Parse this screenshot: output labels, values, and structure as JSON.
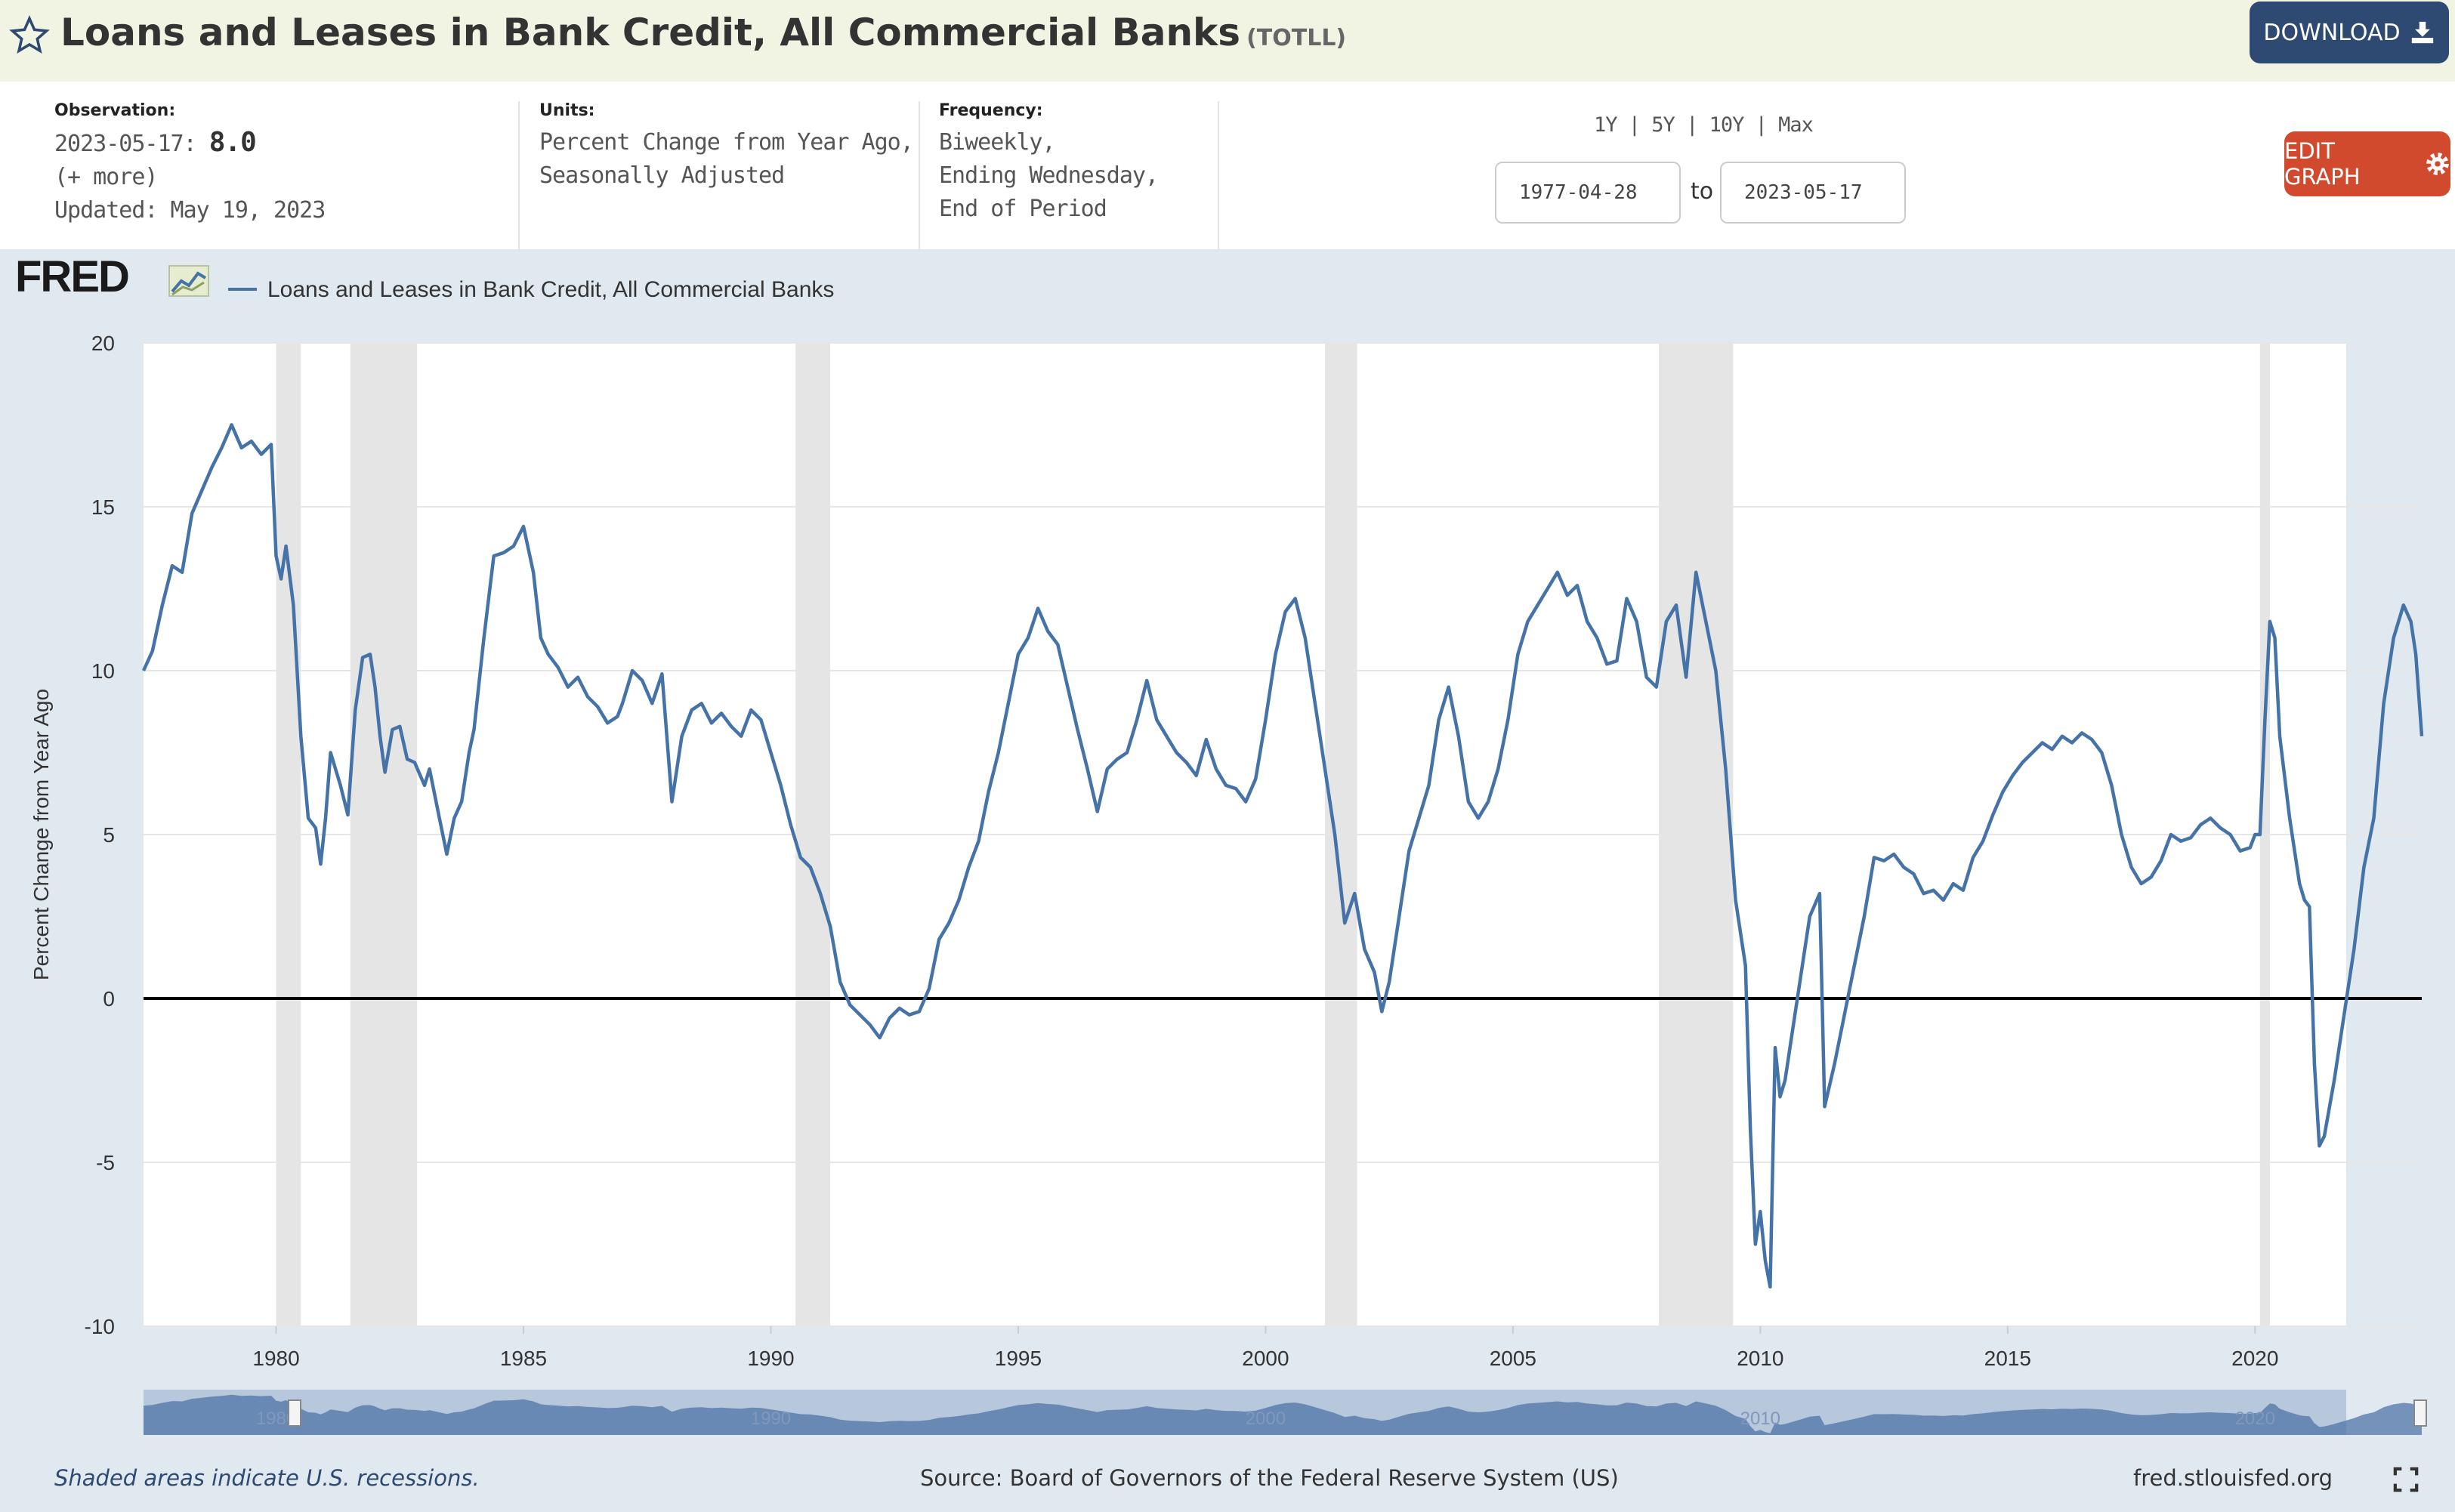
{
  "header": {
    "title": "Loans and Leases in Bank Credit, All Commercial Banks",
    "series_code": "(TOTLL)",
    "download_label": "DOWNLOAD"
  },
  "meta": {
    "observation_label": "Observation:",
    "observation_date": "2023-05-17:",
    "observation_value": "8.0",
    "more_link": "(+ more)",
    "updated": "Updated: May 19, 2023",
    "units_label": "Units:",
    "units_line1": "Percent Change from Year Ago,",
    "units_line2": "Seasonally Adjusted",
    "frequency_label": "Frequency:",
    "frequency_line1": "Biweekly,",
    "frequency_line2": "Ending Wednesday,",
    "frequency_line3": "End of Period"
  },
  "range": {
    "options": [
      "1Y",
      "5Y",
      "10Y",
      "Max"
    ],
    "start": "1977-04-28",
    "to_label": "to",
    "end": "2023-05-17"
  },
  "edit_label": "EDIT GRAPH",
  "chart_data": {
    "type": "line",
    "logo": "FRED",
    "legend": "Loans and Leases in Bank Credit, All Commercial Banks",
    "ylabel": "Percent Change from Year Ago",
    "xlim": [
      1977.32,
      2023.37
    ],
    "ylim": [
      -10,
      20
    ],
    "yticks": [
      20,
      15,
      10,
      5,
      0,
      -5,
      -10
    ],
    "xticks": [
      1980,
      1985,
      1990,
      1995,
      2000,
      2005,
      2010,
      2015,
      2020
    ],
    "nav_labels": [
      "1980",
      "1990",
      "2000",
      "2010",
      "2020"
    ],
    "line_color": "#4572a7",
    "zero_line": true,
    "grid": "horizontal",
    "recessions": [
      [
        1980.0,
        1980.5
      ],
      [
        1981.5,
        1982.85
      ],
      [
        1990.5,
        1991.2
      ],
      [
        2001.2,
        2001.85
      ],
      [
        2007.95,
        2009.45
      ],
      [
        2020.1,
        2020.3
      ]
    ],
    "series": [
      {
        "name": "Loans and Leases in Bank Credit, All Commercial Banks",
        "points": [
          [
            1977.32,
            10.0
          ],
          [
            1977.5,
            10.6
          ],
          [
            1977.7,
            12.0
          ],
          [
            1977.9,
            13.2
          ],
          [
            1978.1,
            13.0
          ],
          [
            1978.3,
            14.8
          ],
          [
            1978.5,
            15.5
          ],
          [
            1978.7,
            16.2
          ],
          [
            1978.9,
            16.8
          ],
          [
            1979.1,
            17.5
          ],
          [
            1979.3,
            16.8
          ],
          [
            1979.5,
            17.0
          ],
          [
            1979.7,
            16.6
          ],
          [
            1979.9,
            16.9
          ],
          [
            1980.0,
            13.5
          ],
          [
            1980.1,
            12.8
          ],
          [
            1980.2,
            13.8
          ],
          [
            1980.35,
            12.0
          ],
          [
            1980.5,
            8.0
          ],
          [
            1980.65,
            5.5
          ],
          [
            1980.8,
            5.2
          ],
          [
            1980.9,
            4.1
          ],
          [
            1981.0,
            5.5
          ],
          [
            1981.1,
            7.5
          ],
          [
            1981.3,
            6.5
          ],
          [
            1981.45,
            5.6
          ],
          [
            1981.6,
            8.8
          ],
          [
            1981.75,
            10.4
          ],
          [
            1981.9,
            10.5
          ],
          [
            1982.0,
            9.5
          ],
          [
            1982.1,
            8.0
          ],
          [
            1982.2,
            6.9
          ],
          [
            1982.35,
            8.2
          ],
          [
            1982.5,
            8.3
          ],
          [
            1982.65,
            7.3
          ],
          [
            1982.8,
            7.2
          ],
          [
            1983.0,
            6.5
          ],
          [
            1983.1,
            7.0
          ],
          [
            1983.3,
            5.5
          ],
          [
            1983.45,
            4.4
          ],
          [
            1983.6,
            5.5
          ],
          [
            1983.75,
            6.0
          ],
          [
            1983.9,
            7.5
          ],
          [
            1984.0,
            8.2
          ],
          [
            1984.2,
            11.0
          ],
          [
            1984.4,
            13.5
          ],
          [
            1984.6,
            13.6
          ],
          [
            1984.8,
            13.8
          ],
          [
            1985.0,
            14.4
          ],
          [
            1985.2,
            13.0
          ],
          [
            1985.35,
            11.0
          ],
          [
            1985.5,
            10.5
          ],
          [
            1985.7,
            10.1
          ],
          [
            1985.9,
            9.5
          ],
          [
            1986.1,
            9.8
          ],
          [
            1986.3,
            9.2
          ],
          [
            1986.5,
            8.9
          ],
          [
            1986.7,
            8.4
          ],
          [
            1986.9,
            8.6
          ],
          [
            1987.0,
            9.0
          ],
          [
            1987.2,
            10.0
          ],
          [
            1987.4,
            9.7
          ],
          [
            1987.6,
            9.0
          ],
          [
            1987.8,
            9.9
          ],
          [
            1988.0,
            6.0
          ],
          [
            1988.2,
            8.0
          ],
          [
            1988.4,
            8.8
          ],
          [
            1988.6,
            9.0
          ],
          [
            1988.8,
            8.4
          ],
          [
            1989.0,
            8.7
          ],
          [
            1989.2,
            8.3
          ],
          [
            1989.4,
            8.0
          ],
          [
            1989.6,
            8.8
          ],
          [
            1989.8,
            8.5
          ],
          [
            1990.0,
            7.5
          ],
          [
            1990.2,
            6.5
          ],
          [
            1990.4,
            5.3
          ],
          [
            1990.6,
            4.3
          ],
          [
            1990.8,
            4.0
          ],
          [
            1991.0,
            3.2
          ],
          [
            1991.2,
            2.2
          ],
          [
            1991.4,
            0.5
          ],
          [
            1991.6,
            -0.2
          ],
          [
            1991.8,
            -0.5
          ],
          [
            1992.0,
            -0.8
          ],
          [
            1992.2,
            -1.2
          ],
          [
            1992.4,
            -0.6
          ],
          [
            1992.6,
            -0.3
          ],
          [
            1992.8,
            -0.5
          ],
          [
            1993.0,
            -0.4
          ],
          [
            1993.2,
            0.3
          ],
          [
            1993.4,
            1.8
          ],
          [
            1993.6,
            2.3
          ],
          [
            1993.8,
            3.0
          ],
          [
            1994.0,
            4.0
          ],
          [
            1994.2,
            4.8
          ],
          [
            1994.4,
            6.3
          ],
          [
            1994.6,
            7.5
          ],
          [
            1994.8,
            9.0
          ],
          [
            1995.0,
            10.5
          ],
          [
            1995.2,
            11.0
          ],
          [
            1995.4,
            11.9
          ],
          [
            1995.6,
            11.2
          ],
          [
            1995.8,
            10.8
          ],
          [
            1996.0,
            9.5
          ],
          [
            1996.2,
            8.2
          ],
          [
            1996.4,
            7.0
          ],
          [
            1996.6,
            5.7
          ],
          [
            1996.8,
            7.0
          ],
          [
            1997.0,
            7.3
          ],
          [
            1997.2,
            7.5
          ],
          [
            1997.4,
            8.5
          ],
          [
            1997.6,
            9.7
          ],
          [
            1997.8,
            8.5
          ],
          [
            1998.0,
            8.0
          ],
          [
            1998.2,
            7.5
          ],
          [
            1998.4,
            7.2
          ],
          [
            1998.6,
            6.8
          ],
          [
            1998.8,
            7.9
          ],
          [
            1999.0,
            7.0
          ],
          [
            1999.2,
            6.5
          ],
          [
            1999.4,
            6.4
          ],
          [
            1999.6,
            6.0
          ],
          [
            1999.8,
            6.7
          ],
          [
            2000.0,
            8.5
          ],
          [
            2000.2,
            10.5
          ],
          [
            2000.4,
            11.8
          ],
          [
            2000.6,
            12.2
          ],
          [
            2000.8,
            11.0
          ],
          [
            2001.0,
            9.0
          ],
          [
            2001.2,
            7.0
          ],
          [
            2001.4,
            5.0
          ],
          [
            2001.6,
            2.3
          ],
          [
            2001.8,
            3.2
          ],
          [
            2002.0,
            1.5
          ],
          [
            2002.2,
            0.8
          ],
          [
            2002.35,
            -0.4
          ],
          [
            2002.5,
            0.5
          ],
          [
            2002.7,
            2.5
          ],
          [
            2002.9,
            4.5
          ],
          [
            2003.1,
            5.5
          ],
          [
            2003.3,
            6.5
          ],
          [
            2003.5,
            8.5
          ],
          [
            2003.7,
            9.5
          ],
          [
            2003.9,
            8.0
          ],
          [
            2004.1,
            6.0
          ],
          [
            2004.3,
            5.5
          ],
          [
            2004.5,
            6.0
          ],
          [
            2004.7,
            7.0
          ],
          [
            2004.9,
            8.5
          ],
          [
            2005.1,
            10.5
          ],
          [
            2005.3,
            11.5
          ],
          [
            2005.5,
            12.0
          ],
          [
            2005.7,
            12.5
          ],
          [
            2005.9,
            13.0
          ],
          [
            2006.1,
            12.3
          ],
          [
            2006.3,
            12.6
          ],
          [
            2006.5,
            11.5
          ],
          [
            2006.7,
            11.0
          ],
          [
            2006.9,
            10.2
          ],
          [
            2007.1,
            10.3
          ],
          [
            2007.3,
            12.2
          ],
          [
            2007.5,
            11.5
          ],
          [
            2007.7,
            9.8
          ],
          [
            2007.9,
            9.5
          ],
          [
            2008.1,
            11.5
          ],
          [
            2008.3,
            12.0
          ],
          [
            2008.5,
            9.8
          ],
          [
            2008.7,
            13.0
          ],
          [
            2008.9,
            11.5
          ],
          [
            2009.1,
            10.0
          ],
          [
            2009.3,
            7.0
          ],
          [
            2009.5,
            3.0
          ],
          [
            2009.7,
            1.0
          ],
          [
            2009.8,
            -4.0
          ],
          [
            2009.9,
            -7.5
          ],
          [
            2010.0,
            -6.5
          ],
          [
            2010.1,
            -8.0
          ],
          [
            2010.2,
            -8.8
          ],
          [
            2010.3,
            -1.5
          ],
          [
            2010.4,
            -3.0
          ],
          [
            2010.5,
            -2.5
          ],
          [
            2010.6,
            -1.5
          ],
          [
            2010.8,
            0.5
          ],
          [
            2011.0,
            2.5
          ],
          [
            2011.2,
            3.2
          ],
          [
            2011.3,
            -3.3
          ],
          [
            2011.5,
            -2.0
          ],
          [
            2011.7,
            -0.5
          ],
          [
            2011.9,
            1.0
          ],
          [
            2012.1,
            2.5
          ],
          [
            2012.3,
            4.3
          ],
          [
            2012.5,
            4.2
          ],
          [
            2012.7,
            4.4
          ],
          [
            2012.9,
            4.0
          ],
          [
            2013.1,
            3.8
          ],
          [
            2013.3,
            3.2
          ],
          [
            2013.5,
            3.3
          ],
          [
            2013.7,
            3.0
          ],
          [
            2013.9,
            3.5
          ],
          [
            2014.1,
            3.3
          ],
          [
            2014.3,
            4.3
          ],
          [
            2014.5,
            4.8
          ],
          [
            2014.7,
            5.6
          ],
          [
            2014.9,
            6.3
          ],
          [
            2015.1,
            6.8
          ],
          [
            2015.3,
            7.2
          ],
          [
            2015.5,
            7.5
          ],
          [
            2015.7,
            7.8
          ],
          [
            2015.9,
            7.6
          ],
          [
            2016.1,
            8.0
          ],
          [
            2016.3,
            7.8
          ],
          [
            2016.5,
            8.1
          ],
          [
            2016.7,
            7.9
          ],
          [
            2016.9,
            7.5
          ],
          [
            2017.1,
            6.5
          ],
          [
            2017.3,
            5.0
          ],
          [
            2017.5,
            4.0
          ],
          [
            2017.7,
            3.5
          ],
          [
            2017.9,
            3.7
          ],
          [
            2018.1,
            4.2
          ],
          [
            2018.3,
            5.0
          ],
          [
            2018.5,
            4.8
          ],
          [
            2018.7,
            4.9
          ],
          [
            2018.9,
            5.3
          ],
          [
            2019.1,
            5.5
          ],
          [
            2019.3,
            5.2
          ],
          [
            2019.5,
            5.0
          ],
          [
            2019.7,
            4.5
          ],
          [
            2019.9,
            4.6
          ],
          [
            2020.0,
            5.0
          ],
          [
            2020.1,
            5.0
          ],
          [
            2020.2,
            8.5
          ],
          [
            2020.3,
            11.5
          ],
          [
            2020.4,
            11.0
          ],
          [
            2020.5,
            8.0
          ],
          [
            2020.7,
            5.5
          ],
          [
            2020.9,
            3.5
          ],
          [
            2021.0,
            3.0
          ],
          [
            2021.1,
            2.8
          ],
          [
            2021.2,
            -2.0
          ],
          [
            2021.3,
            -4.5
          ],
          [
            2021.4,
            -4.2
          ],
          [
            2021.6,
            -2.5
          ],
          [
            2021.8,
            -0.5
          ],
          [
            2022.0,
            1.5
          ],
          [
            2022.2,
            4.0
          ],
          [
            2022.4,
            5.5
          ],
          [
            2022.6,
            9.0
          ],
          [
            2022.8,
            11.0
          ],
          [
            2023.0,
            12.0
          ],
          [
            2023.15,
            11.5
          ],
          [
            2023.25,
            10.5
          ],
          [
            2023.37,
            8.0
          ]
        ]
      }
    ]
  },
  "footer": {
    "recession_note": "Shaded areas indicate U.S. recessions.",
    "source": "Source: Board of Governors of the Federal Reserve System (US)",
    "site": "fred.stlouisfed.org"
  }
}
